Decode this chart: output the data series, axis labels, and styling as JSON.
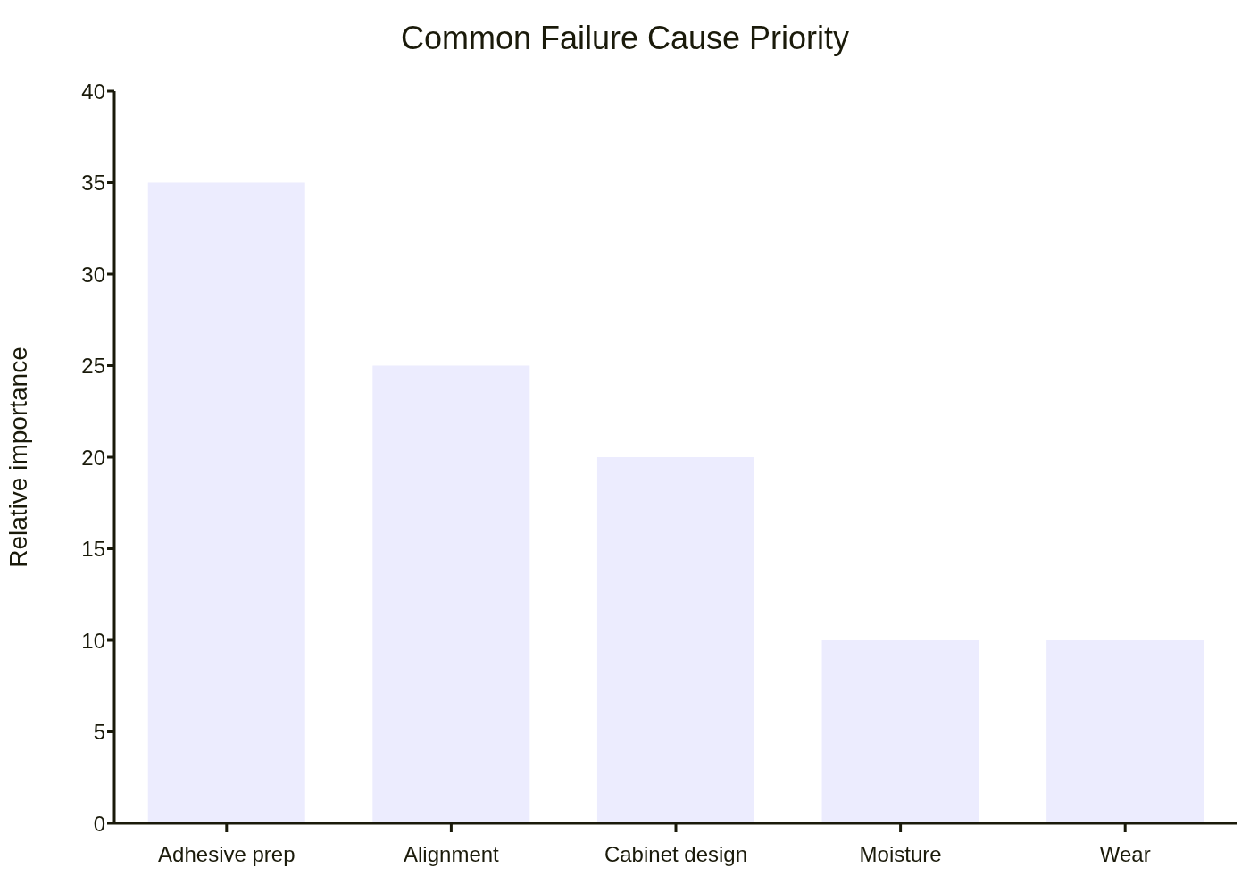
{
  "chart_data": {
    "type": "bar",
    "title": "Common Failure Cause Priority",
    "ylabel": "Relative importance",
    "categories": [
      "Adhesive prep",
      "Alignment",
      "Cabinet design",
      "Moisture",
      "Wear"
    ],
    "values": [
      35,
      25,
      20,
      10,
      10
    ],
    "color": "#ececfe",
    "ylim": [
      0,
      40
    ],
    "yticks": [
      0,
      5,
      10,
      15,
      20,
      25,
      30,
      35,
      40
    ]
  }
}
